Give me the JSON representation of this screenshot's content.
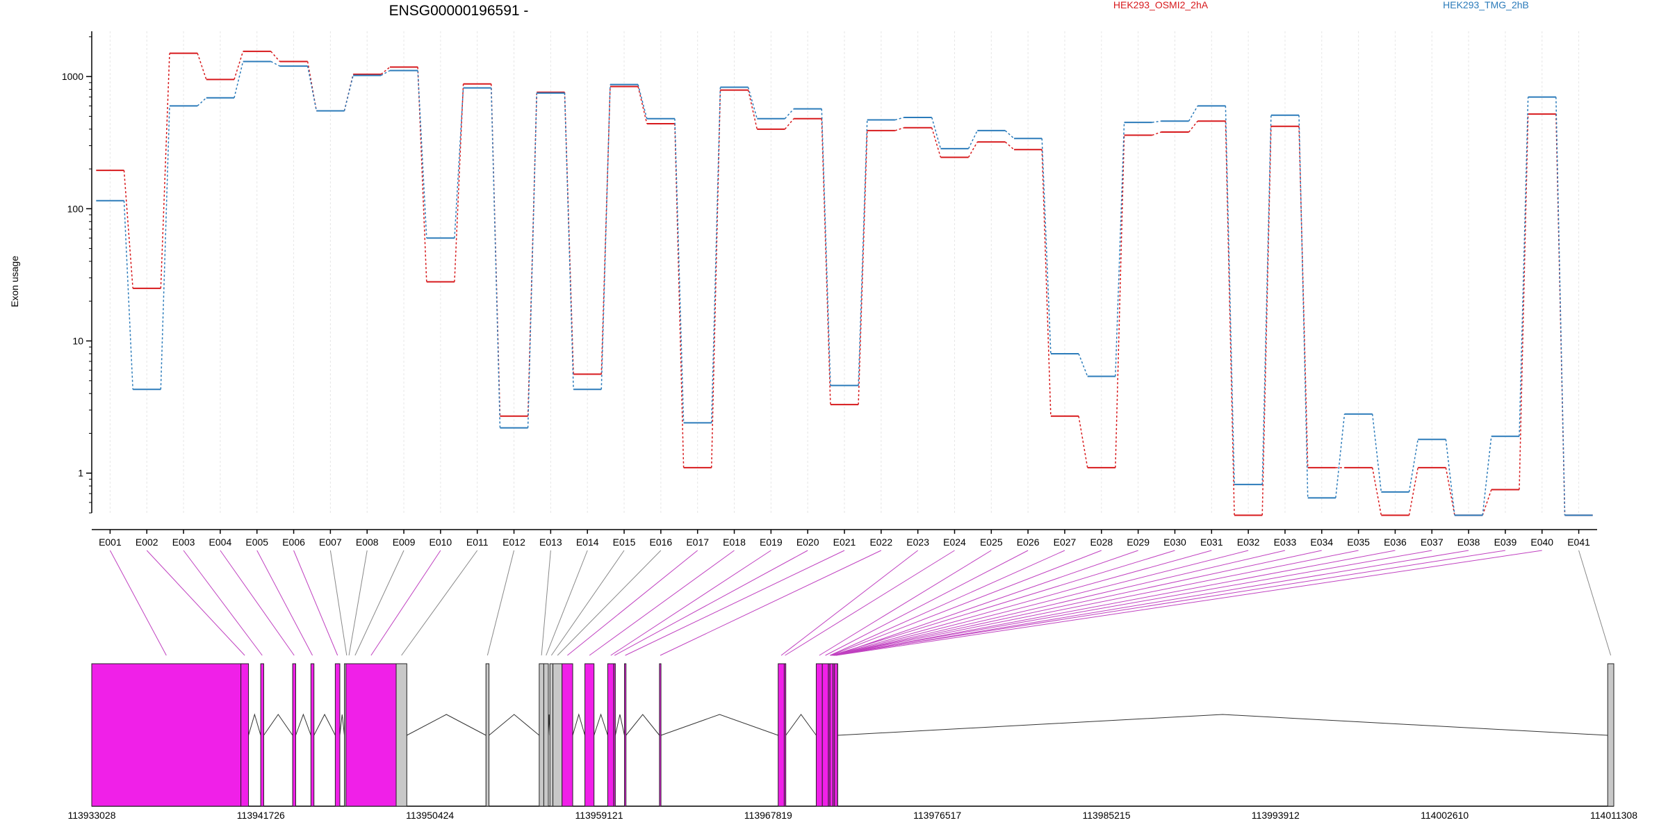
{
  "chart_data": {
    "type": "line",
    "title": "ENSG00000196591 -",
    "ylabel": "Exon usage",
    "y_scale": "log",
    "y_ticks": [
      1,
      10,
      100,
      1000
    ],
    "y_tick_labels": [
      "1",
      "10",
      "100",
      "1000"
    ],
    "ylim": [
      0.5,
      2200
    ],
    "grid": "vertical lines at each exon",
    "legend_placement": "top-right",
    "colors": {
      "series_a": "#d7191c",
      "series_b": "#2b7bba",
      "exon_significant": "#f020e8",
      "exon_normal": "#c8c8c8"
    },
    "categories": [
      "E001",
      "E002",
      "E003",
      "E004",
      "E005",
      "E006",
      "E007",
      "E008",
      "E009",
      "E010",
      "E011",
      "E012",
      "E013",
      "E014",
      "E015",
      "E016",
      "E017",
      "E018",
      "E019",
      "E020",
      "E021",
      "E022",
      "E023",
      "E024",
      "E025",
      "E026",
      "E027",
      "E028",
      "E029",
      "E030",
      "E031",
      "E032",
      "E033",
      "E034",
      "E035",
      "E036",
      "E037",
      "E038",
      "E039",
      "E040",
      "E041"
    ],
    "series": [
      {
        "name": "HEK293_OSMI2_2hA",
        "color": "#d7191c",
        "values": [
          195,
          25,
          1500,
          950,
          1550,
          1300,
          550,
          1040,
          1180,
          28,
          880,
          2.7,
          760,
          5.6,
          840,
          440,
          1.1,
          790,
          400,
          480,
          3.3,
          390,
          410,
          245,
          320,
          280,
          2.7,
          1.1,
          360,
          380,
          460,
          0.48,
          420,
          1.1,
          1.1,
          0.48,
          1.1,
          0.48,
          0.75,
          520,
          0.48
        ]
      },
      {
        "name": "HEK293_TMG_2hB",
        "color": "#2b7bba",
        "values": [
          115,
          4.3,
          600,
          690,
          1300,
          1200,
          550,
          1020,
          1110,
          60,
          820,
          2.2,
          750,
          4.3,
          870,
          480,
          2.4,
          830,
          480,
          570,
          4.6,
          470,
          490,
          285,
          390,
          340,
          8,
          5.4,
          450,
          460,
          600,
          0.82,
          510,
          0.65,
          2.8,
          0.72,
          1.8,
          0.48,
          1.9,
          700,
          0.48
        ]
      }
    ],
    "genomic_axis": {
      "tick_labels": [
        "113933028",
        "113941726",
        "113950424",
        "113959121",
        "113967819",
        "113976517",
        "113985215",
        "113993912",
        "114002610",
        "114011308"
      ]
    },
    "exon_significant": [
      true,
      true,
      true,
      true,
      true,
      true,
      false,
      false,
      false,
      true,
      false,
      false,
      false,
      false,
      false,
      false,
      true,
      true,
      true,
      true,
      true,
      true,
      true,
      true,
      true,
      true,
      true,
      true,
      true,
      true,
      true,
      true,
      true,
      true,
      true,
      true,
      true,
      true,
      true,
      true,
      false
    ]
  }
}
